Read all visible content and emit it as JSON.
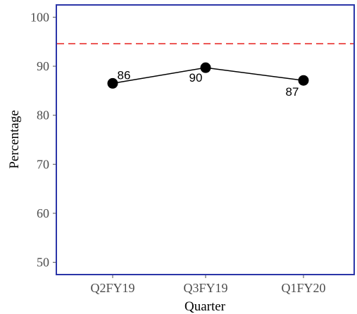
{
  "chart_data": {
    "type": "line",
    "categories": [
      "Q2FY19",
      "Q3FY19",
      "Q1FY20"
    ],
    "values": [
      86.5,
      89.7,
      87.1
    ],
    "data_labels": [
      "86",
      "90",
      "87"
    ],
    "xlabel": "Quarter",
    "ylabel": "Percentage",
    "ylim": [
      47.5,
      102.5
    ],
    "yticks": [
      "50",
      "60",
      "70",
      "80",
      "90",
      "100"
    ],
    "ytick_values": [
      50,
      60,
      70,
      80,
      90,
      100
    ],
    "reference_line": {
      "value": 94.6,
      "style": "dashed"
    },
    "grid": false,
    "legend": "none"
  },
  "colors": {
    "frame": "#2b35a8",
    "series": "#000000",
    "reference_line": "#e8312f",
    "tick_text": "#4d4d4d"
  }
}
